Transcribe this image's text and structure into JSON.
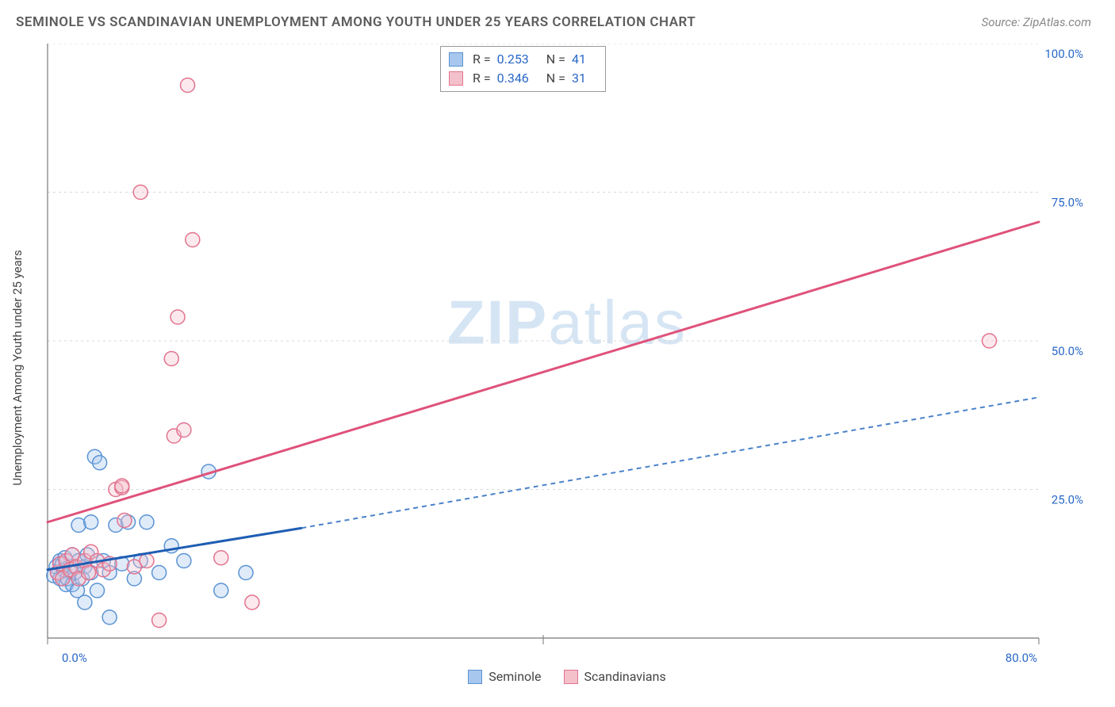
{
  "title": "SEMINOLE VS SCANDINAVIAN UNEMPLOYMENT AMONG YOUTH UNDER 25 YEARS CORRELATION CHART",
  "source": "Source: ZipAtlas.com",
  "watermark_bold": "ZIP",
  "watermark_light": "atlas",
  "y_axis_label": "Unemployment Among Youth under 25 years",
  "chart": {
    "type": "scatter",
    "background_color": "#ffffff",
    "grid_color": "#d8d8d8",
    "grid_dash": "3,4",
    "axis_line_color": "#777777",
    "xlim": [
      0,
      80
    ],
    "ylim": [
      0,
      100
    ],
    "x_ticks": [
      {
        "v": 0,
        "label": "0.0%"
      },
      {
        "v": 40,
        "label": ""
      },
      {
        "v": 80,
        "label": "80.0%"
      }
    ],
    "y_ticks": [
      {
        "v": 25,
        "label": "25.0%"
      },
      {
        "v": 50,
        "label": "50.0%"
      },
      {
        "v": 75,
        "label": "75.0%"
      },
      {
        "v": 100,
        "label": "100.0%"
      }
    ],
    "y_tick_color": "#2968c8",
    "marker_radius": 9,
    "marker_fill_opacity": 0.35,
    "marker_stroke_width": 1.5,
    "series": [
      {
        "name": "Seminole",
        "color_fill": "#a7c7ee",
        "color_stroke": "#5a93d4",
        "r": 0.253,
        "n": 41,
        "trend": {
          "x1": 0,
          "y1": 11.5,
          "x2": 20.5,
          "y2": 18.5,
          "ext_x2": 80,
          "ext_y2": 40.5,
          "solid_color": "#1f5db3",
          "dash_color": "#4a82c9",
          "width": 3,
          "dash": "6,5"
        },
        "points": [
          [
            0.5,
            10.5
          ],
          [
            0.7,
            12
          ],
          [
            0.8,
            11
          ],
          [
            1,
            13
          ],
          [
            1,
            10
          ],
          [
            1.2,
            12.5
          ],
          [
            1.3,
            11.5
          ],
          [
            1.4,
            13.5
          ],
          [
            1.5,
            9
          ],
          [
            1.6,
            10
          ],
          [
            1.8,
            12
          ],
          [
            2,
            14
          ],
          [
            2,
            9
          ],
          [
            2.2,
            11
          ],
          [
            2.4,
            8
          ],
          [
            2.5,
            13
          ],
          [
            2.5,
            19
          ],
          [
            2.8,
            10
          ],
          [
            3,
            12
          ],
          [
            3,
            6
          ],
          [
            3.2,
            14
          ],
          [
            3.5,
            11
          ],
          [
            3.5,
            19.5
          ],
          [
            3.8,
            30.5
          ],
          [
            4,
            8
          ],
          [
            4.2,
            29.5
          ],
          [
            4.5,
            13
          ],
          [
            5,
            11
          ],
          [
            5,
            3.5
          ],
          [
            5.5,
            19
          ],
          [
            6,
            12.5
          ],
          [
            6.5,
            19.5
          ],
          [
            7,
            10
          ],
          [
            7.5,
            13
          ],
          [
            8,
            19.5
          ],
          [
            9,
            11
          ],
          [
            10,
            15.5
          ],
          [
            11,
            13
          ],
          [
            13,
            28
          ],
          [
            14,
            8
          ],
          [
            16,
            11
          ]
        ]
      },
      {
        "name": "Scandinavians",
        "color_fill": "#f4c1cb",
        "color_stroke": "#e2738f",
        "r": 0.346,
        "n": 31,
        "trend": {
          "x1": 0,
          "y1": 19.5,
          "x2": 80,
          "y2": 70,
          "solid_color": "#df527a",
          "width": 3
        },
        "points": [
          [
            0.8,
            11
          ],
          [
            1,
            12.5
          ],
          [
            1.2,
            10
          ],
          [
            1.5,
            13
          ],
          [
            1.8,
            11.5
          ],
          [
            2,
            14
          ],
          [
            2.3,
            12
          ],
          [
            2.5,
            10
          ],
          [
            3,
            13
          ],
          [
            3.3,
            11
          ],
          [
            3.5,
            14.5
          ],
          [
            4,
            13
          ],
          [
            4.5,
            11.5
          ],
          [
            5,
            12.5
          ],
          [
            5.5,
            25
          ],
          [
            6,
            25.3
          ],
          [
            6,
            25.6
          ],
          [
            6.2,
            19.8
          ],
          [
            7,
            12
          ],
          [
            7.5,
            75
          ],
          [
            8,
            13
          ],
          [
            9,
            3
          ],
          [
            10,
            47
          ],
          [
            10.2,
            34
          ],
          [
            10.5,
            54
          ],
          [
            11,
            35
          ],
          [
            11.3,
            93
          ],
          [
            11.7,
            67
          ],
          [
            14,
            13.5
          ],
          [
            16.5,
            6
          ],
          [
            76,
            50
          ]
        ]
      }
    ]
  },
  "legend_bottom": [
    {
      "label": "Seminole",
      "fill": "#a7c7ee",
      "stroke": "#5a93d4"
    },
    {
      "label": "Scandinavians",
      "fill": "#f4c1cb",
      "stroke": "#e2738f"
    }
  ]
}
